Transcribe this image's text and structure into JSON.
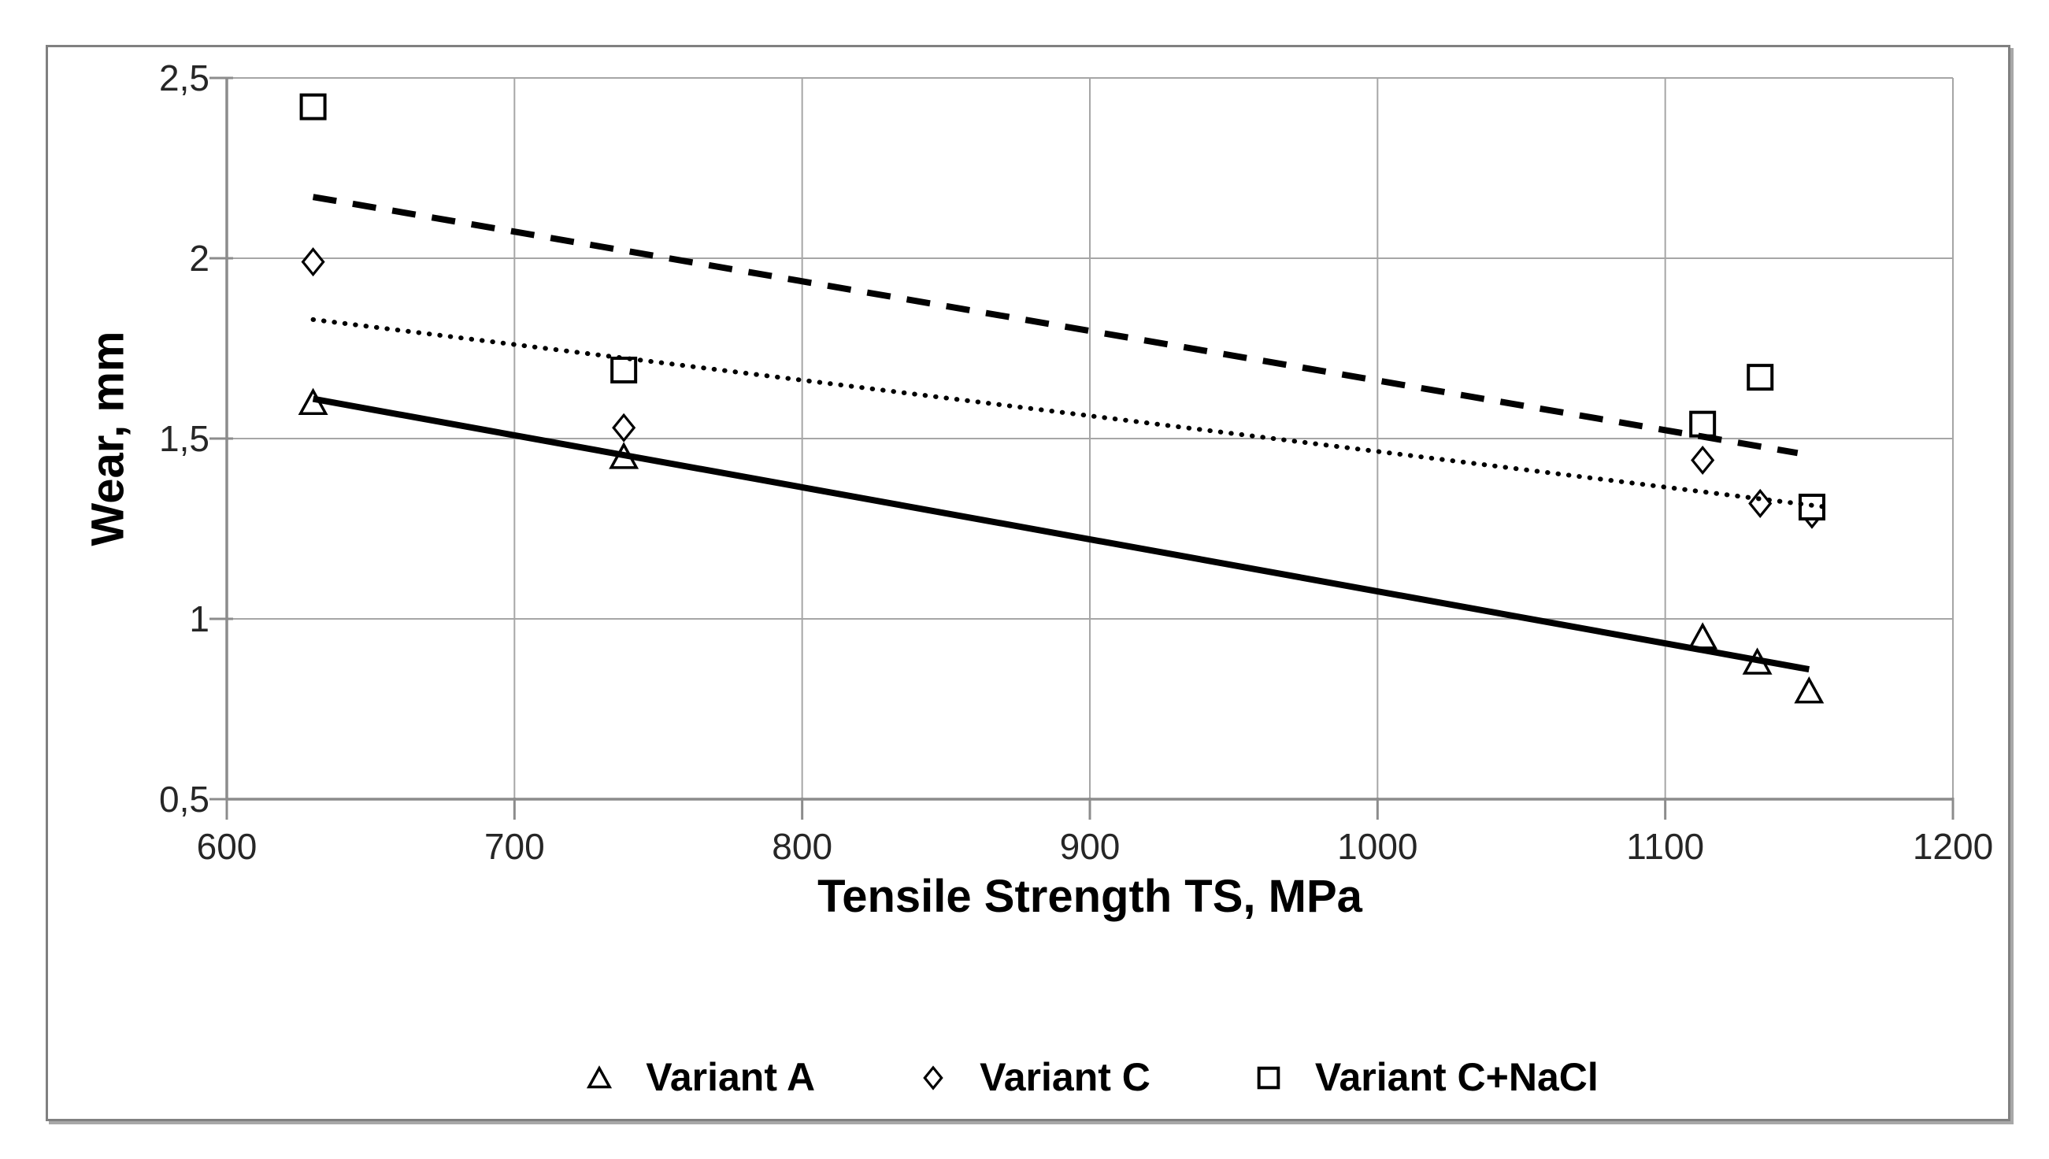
{
  "figure": {
    "background": "#ffffff",
    "border_color": "#808080"
  },
  "colors": {
    "gridline": "#a6a6a6",
    "axis": "#8c8c8c",
    "marker": "#000000",
    "tick_text": "#262626",
    "title_text": "#000000"
  },
  "chart_data": {
    "type": "scatter",
    "title": "",
    "xlabel": "Tensile Strength TS, MPa",
    "ylabel": "Wear, mm",
    "xlim": [
      600,
      1200
    ],
    "ylim": [
      0.5,
      2.5
    ],
    "x_ticks": [
      600,
      700,
      800,
      900,
      1000,
      1100,
      1200
    ],
    "x_tick_labels": [
      "600",
      "700",
      "800",
      "900",
      "1000",
      "1100",
      "1200"
    ],
    "y_ticks": [
      0.5,
      1,
      1.5,
      2,
      2.5
    ],
    "y_tick_labels": [
      "0,5",
      "1",
      "1,5",
      "2",
      "2,5"
    ],
    "grid": true,
    "legend_position": "bottom",
    "series": [
      {
        "name": "Variant A",
        "marker": "triangle",
        "points": [
          [
            630,
            1.6
          ],
          [
            738,
            1.45
          ],
          [
            1113,
            0.95
          ],
          [
            1132,
            0.88
          ],
          [
            1150,
            0.8
          ]
        ],
        "trendline": {
          "style": "solid",
          "x": [
            630,
            1150
          ],
          "y": [
            1.61,
            0.86
          ]
        }
      },
      {
        "name": "Variant C",
        "marker": "diamond",
        "points": [
          [
            630,
            1.99
          ],
          [
            738,
            1.53
          ],
          [
            1113,
            1.44
          ],
          [
            1133,
            1.32
          ],
          [
            1151,
            1.29
          ]
        ],
        "trendline": {
          "style": "dotted",
          "x": [
            630,
            1156
          ],
          "y": [
            1.83,
            1.31
          ]
        }
      },
      {
        "name": "Variant C+NaCl",
        "marker": "square",
        "points": [
          [
            630,
            2.42
          ],
          [
            738,
            1.69
          ],
          [
            1113,
            1.54
          ],
          [
            1133,
            1.67
          ],
          [
            1151,
            1.31
          ]
        ],
        "trendline": {
          "style": "dashed",
          "x": [
            630,
            1146
          ],
          "y": [
            2.17,
            1.46
          ]
        }
      }
    ]
  },
  "legend": {
    "items": [
      {
        "label": "Variant A",
        "marker": "triangle"
      },
      {
        "label": "Variant C",
        "marker": "diamond"
      },
      {
        "label": "Variant C+NaCl",
        "marker": "square"
      }
    ]
  }
}
